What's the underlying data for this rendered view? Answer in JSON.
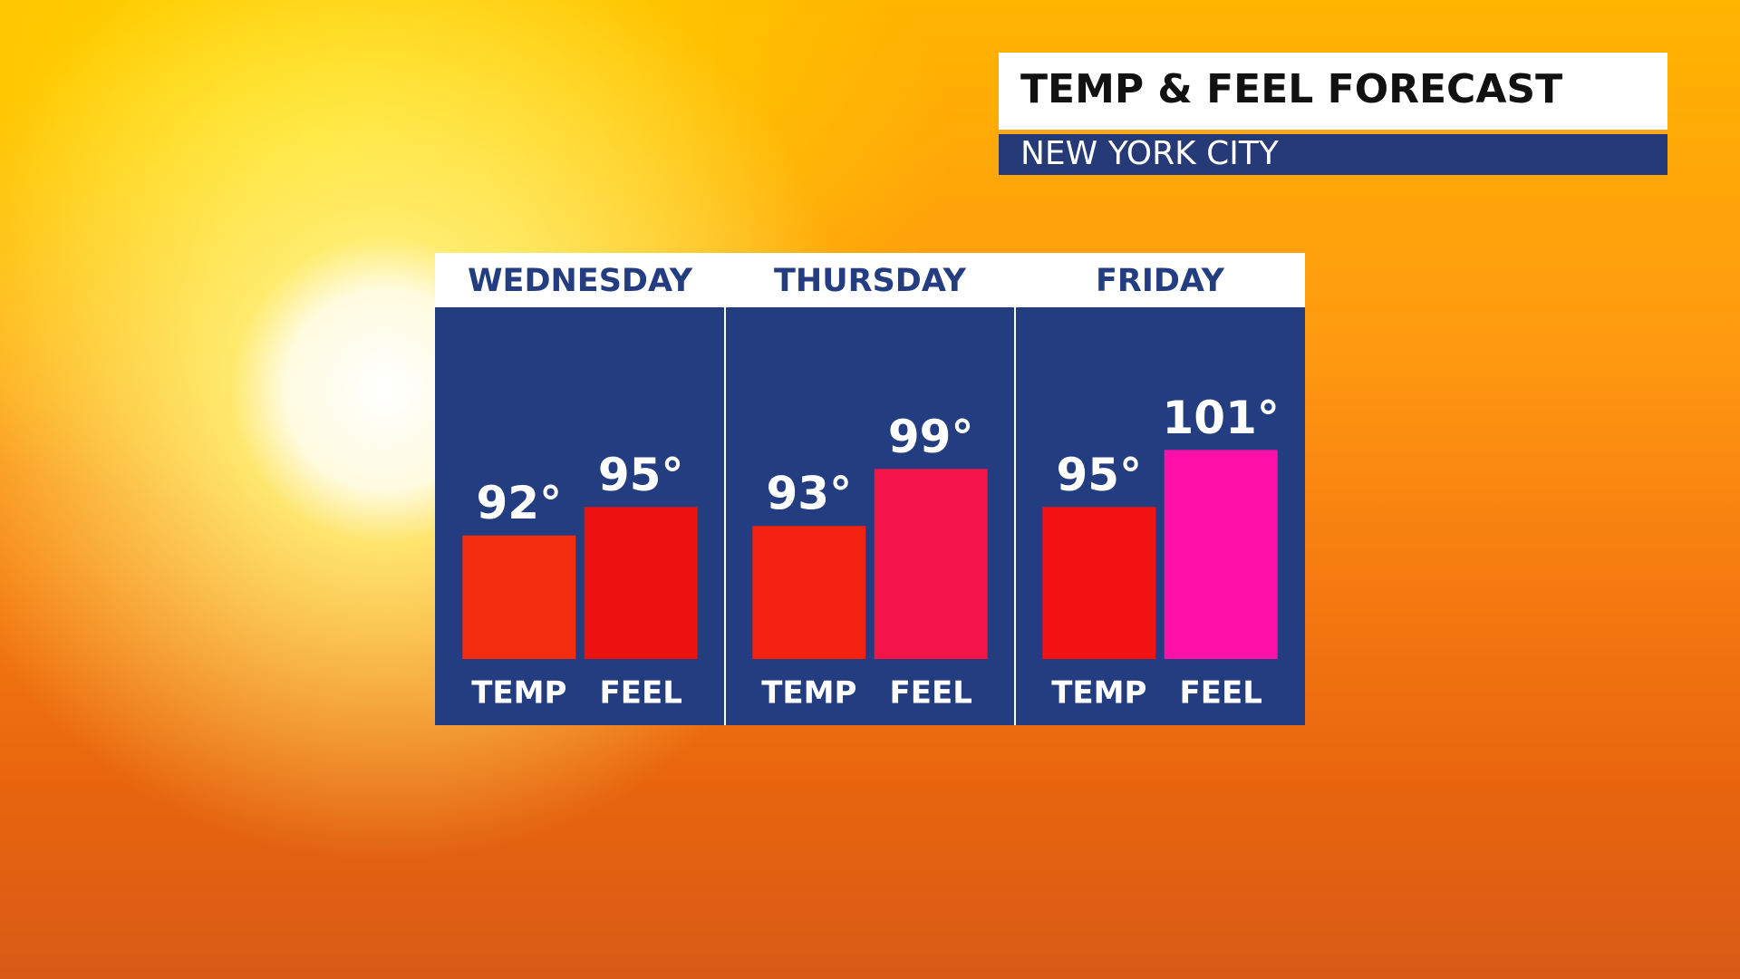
{
  "chart_data": {
    "type": "bar",
    "title": "TEMP & FEEL FORECAST",
    "subtitle": "NEW YORK CITY",
    "categories": [
      "WEDNESDAY",
      "THURSDAY",
      "FRIDAY"
    ],
    "series": [
      {
        "name": "TEMP",
        "colors": [
          "#f42c10",
          "#f42210",
          "#f31313"
        ],
        "values": [
          92,
          93,
          95
        ],
        "value_labels": [
          "92°",
          "93°",
          "95°"
        ]
      },
      {
        "name": "FEEL",
        "colors": [
          "#ec1212",
          "#f5144a",
          "#ff10a8"
        ],
        "values": [
          95,
          99,
          101
        ],
        "value_labels": [
          "95°",
          "99°",
          "101°"
        ]
      }
    ],
    "ylim": [
      79,
      110
    ]
  }
}
